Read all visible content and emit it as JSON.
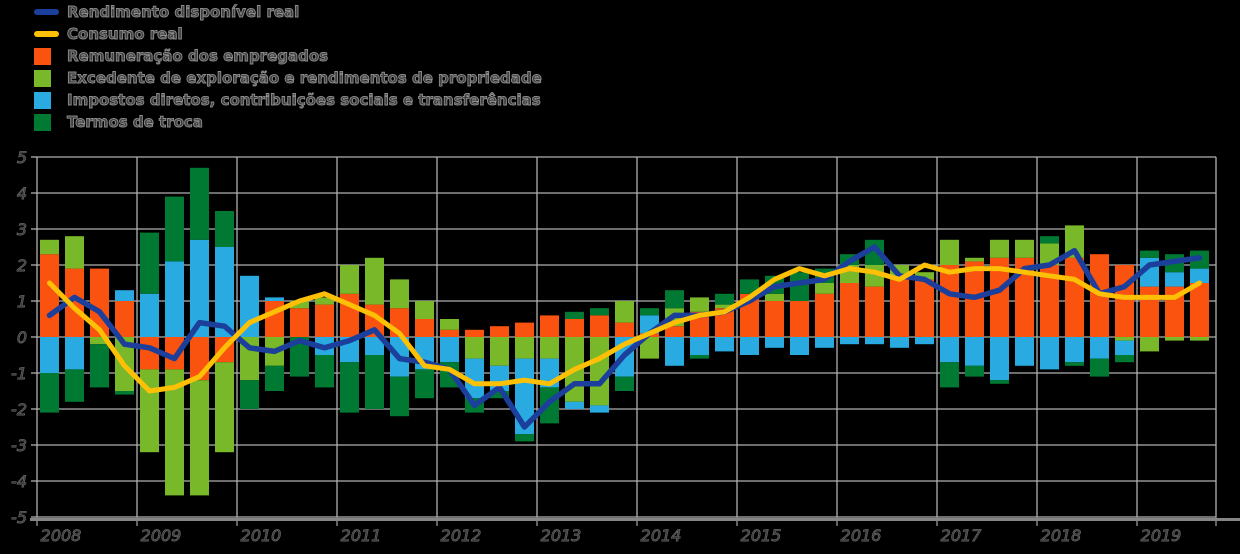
{
  "chart_data": {
    "type": "bar",
    "bar_mode": "stacked-quarterly-with-line-overlay",
    "title": "",
    "ylabel": "",
    "xlabel": "",
    "ylim": [
      -5,
      5
    ],
    "y_ticks": [
      5,
      4,
      3,
      2,
      1,
      0,
      -1,
      -2,
      -3,
      -4,
      -5
    ],
    "grid": true,
    "legend_position": "top-left",
    "year_labels": [
      "2008",
      "2009",
      "2010",
      "2011",
      "2012",
      "2013",
      "2014",
      "2015",
      "2016",
      "2017",
      "2018",
      "2019"
    ],
    "x": [
      "2008Q1",
      "2008Q2",
      "2008Q3",
      "2008Q4",
      "2009Q1",
      "2009Q2",
      "2009Q3",
      "2009Q4",
      "2010Q1",
      "2010Q2",
      "2010Q3",
      "2010Q4",
      "2011Q1",
      "2011Q2",
      "2011Q3",
      "2011Q4",
      "2012Q1",
      "2012Q2",
      "2012Q3",
      "2012Q4",
      "2013Q1",
      "2013Q2",
      "2013Q3",
      "2013Q4",
      "2014Q1",
      "2014Q2",
      "2014Q3",
      "2014Q4",
      "2015Q1",
      "2015Q2",
      "2015Q3",
      "2015Q4",
      "2016Q1",
      "2016Q2",
      "2016Q3",
      "2016Q4",
      "2017Q1",
      "2017Q2",
      "2017Q3",
      "2017Q4",
      "2018Q1",
      "2018Q2",
      "2018Q3",
      "2018Q4",
      "2019Q1",
      "2019Q2",
      "2019Q3"
    ],
    "bar_series": [
      {
        "name": "Remuneração dos empregados",
        "color": "#fa530f",
        "values": [
          2.3,
          1.9,
          1.9,
          1.0,
          -0.9,
          -0.9,
          -1.2,
          -0.7,
          0.0,
          1.0,
          0.8,
          0.9,
          1.2,
          0.9,
          0.8,
          0.5,
          0.2,
          0.2,
          0.3,
          0.4,
          0.6,
          0.5,
          0.6,
          0.4,
          0.1,
          0.3,
          0.7,
          0.8,
          1.2,
          1.0,
          1.0,
          1.2,
          1.5,
          1.4,
          1.6,
          1.6,
          2.0,
          2.1,
          2.2,
          2.2,
          2.0,
          2.2,
          2.3,
          2.0,
          1.4,
          1.4,
          1.5
        ]
      },
      {
        "name": "Excedente de exploração e rendimentos de propriedade",
        "color": "#79b828",
        "values": [
          0.4,
          0.9,
          -0.2,
          -1.5,
          -2.3,
          -3.5,
          -3.2,
          -2.5,
          -1.2,
          -0.8,
          0.2,
          0.2,
          0.8,
          1.3,
          0.8,
          0.5,
          0.3,
          -0.6,
          -0.8,
          -0.6,
          -0.6,
          -1.8,
          -1.9,
          0.6,
          -0.6,
          0.5,
          0.4,
          0.1,
          0.0,
          0.2,
          0.0,
          0.3,
          0.5,
          0.6,
          0.4,
          0.2,
          0.7,
          0.1,
          0.5,
          0.5,
          0.6,
          0.9,
          0.0,
          -0.1,
          -0.4,
          -0.1,
          -0.1
        ]
      },
      {
        "name": "Impostos diretos, contribuições sociais e transferências",
        "color": "#29abe2",
        "values": [
          -1.0,
          -0.9,
          0.0,
          0.3,
          1.2,
          2.1,
          2.7,
          2.5,
          1.7,
          0.1,
          0.0,
          -0.5,
          -0.7,
          -0.5,
          -1.1,
          -0.9,
          -0.7,
          -1.1,
          -0.7,
          -2.1,
          -0.8,
          -0.2,
          -0.2,
          -1.1,
          0.5,
          -0.8,
          -0.5,
          -0.4,
          -0.5,
          -0.3,
          -0.5,
          -0.3,
          -0.2,
          -0.2,
          -0.3,
          -0.2,
          -0.7,
          -0.8,
          -1.2,
          -0.8,
          -0.9,
          -0.7,
          -0.6,
          -0.4,
          0.8,
          0.4,
          0.4
        ]
      },
      {
        "name": "Termos de troca",
        "color": "#007a33",
        "values": [
          -1.1,
          -0.9,
          -1.2,
          -0.1,
          1.7,
          1.8,
          2.0,
          1.0,
          -0.8,
          -0.7,
          -1.1,
          -0.9,
          -1.4,
          -1.5,
          -1.1,
          -0.8,
          -0.7,
          -0.4,
          -0.2,
          -0.2,
          -1.0,
          0.2,
          0.2,
          -0.4,
          0.2,
          0.5,
          -0.1,
          0.3,
          0.4,
          0.5,
          0.8,
          0.4,
          0.3,
          0.7,
          0.0,
          0.0,
          -0.7,
          -0.3,
          -0.1,
          0.0,
          0.2,
          -0.1,
          -0.5,
          -0.2,
          0.2,
          0.5,
          0.5
        ]
      }
    ],
    "line_series": [
      {
        "name": "Rendimento disponível real",
        "color": "#1b3f9b",
        "values": [
          0.6,
          1.1,
          0.7,
          -0.2,
          -0.3,
          -0.6,
          0.4,
          0.3,
          -0.3,
          -0.4,
          -0.1,
          -0.3,
          -0.1,
          0.2,
          -0.6,
          -0.7,
          -0.9,
          -1.9,
          -1.4,
          -2.5,
          -1.8,
          -1.3,
          -1.3,
          -0.5,
          0.1,
          0.6,
          0.6,
          0.7,
          1.0,
          1.4,
          1.5,
          1.6,
          2.1,
          2.5,
          1.7,
          1.6,
          1.2,
          1.1,
          1.3,
          1.9,
          2.0,
          2.4,
          1.2,
          1.4,
          2.0,
          2.1,
          2.2
        ]
      },
      {
        "name": "Consumo real",
        "color": "#fdc004",
        "values": [
          1.5,
          0.8,
          0.2,
          -0.8,
          -1.5,
          -1.4,
          -1.1,
          -0.3,
          0.4,
          0.7,
          1.0,
          1.2,
          0.9,
          0.6,
          0.1,
          -0.8,
          -0.9,
          -1.3,
          -1.3,
          -1.2,
          -1.3,
          -0.9,
          -0.6,
          -0.2,
          0.1,
          0.4,
          0.6,
          0.7,
          1.1,
          1.6,
          1.9,
          1.7,
          1.9,
          1.8,
          1.6,
          2.0,
          1.8,
          1.9,
          1.9,
          1.8,
          1.7,
          1.6,
          1.2,
          1.1,
          1.1,
          1.1,
          1.5
        ]
      }
    ],
    "colors": {
      "background": "#000000",
      "gridline": "#b0b0b0",
      "axis_spine": "#858585",
      "tick_text": "#8d8d8d"
    }
  }
}
